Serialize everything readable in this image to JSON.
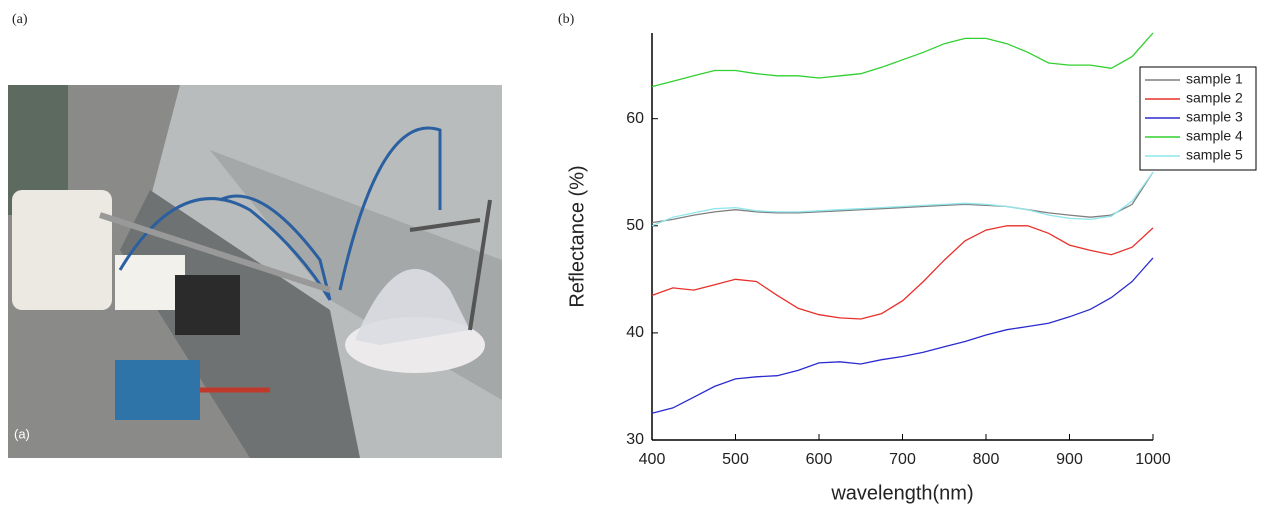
{
  "panels": {
    "left_label": "(a)",
    "right_label": "(b)",
    "photo_label": "(a)"
  },
  "chart_data": {
    "type": "line",
    "x_label": "wavelength(nm)",
    "y_label": "Reflectance (%)",
    "x": [
      400,
      425,
      450,
      475,
      500,
      525,
      550,
      575,
      600,
      625,
      650,
      675,
      700,
      725,
      750,
      775,
      800,
      825,
      850,
      875,
      900,
      925,
      950,
      975,
      1000
    ],
    "xlim": [
      400,
      1000
    ],
    "xticks": [
      400,
      500,
      600,
      700,
      800,
      900,
      1000
    ],
    "ylim": [
      30,
      68
    ],
    "yticks": [
      30,
      40,
      50,
      60
    ],
    "legend": "upper-right",
    "series": [
      {
        "name": "sample 1",
        "color": "#7f7f7f",
        "values": [
          50.3,
          50.6,
          51,
          51.3,
          51.5,
          51.3,
          51.2,
          51.2,
          51.3,
          51.4,
          51.5,
          51.6,
          51.7,
          51.8,
          51.9,
          52,
          51.9,
          51.8,
          51.5,
          51.2,
          51,
          50.8,
          51,
          52,
          55
        ]
      },
      {
        "name": "sample 2",
        "color": "#e8302a",
        "values": [
          43.5,
          44.2,
          44,
          44.5,
          45,
          44.8,
          43.5,
          42.3,
          41.7,
          41.4,
          41.3,
          41.8,
          43,
          44.8,
          46.8,
          48.6,
          49.6,
          50,
          50,
          49.3,
          48.2,
          47.7,
          47.3,
          48,
          49.8
        ]
      },
      {
        "name": "sample 3",
        "color": "#2b2bd0",
        "values": [
          32.5,
          33,
          34,
          35,
          35.7,
          35.9,
          36,
          36.5,
          37.2,
          37.3,
          37.1,
          37.5,
          37.8,
          38.2,
          38.7,
          39.2,
          39.8,
          40.3,
          40.6,
          40.9,
          41.5,
          42.2,
          43.3,
          44.8,
          47
        ]
      },
      {
        "name": "sample 4",
        "color": "#30d030",
        "values": [
          63,
          63.5,
          64,
          64.5,
          64.5,
          64.2,
          64,
          64,
          63.8,
          64,
          64.2,
          64.8,
          65.5,
          66.2,
          67,
          67.5,
          67.5,
          67,
          66.2,
          65.2,
          65,
          65,
          64.7,
          65.8,
          68
        ]
      },
      {
        "name": "sample 5",
        "color": "#8fe6ec",
        "values": [
          50,
          50.8,
          51.2,
          51.6,
          51.7,
          51.4,
          51.3,
          51.3,
          51.4,
          51.5,
          51.6,
          51.7,
          51.8,
          51.9,
          52,
          52.1,
          52,
          51.8,
          51.5,
          51,
          50.7,
          50.6,
          50.9,
          52.3,
          55
        ]
      }
    ]
  }
}
